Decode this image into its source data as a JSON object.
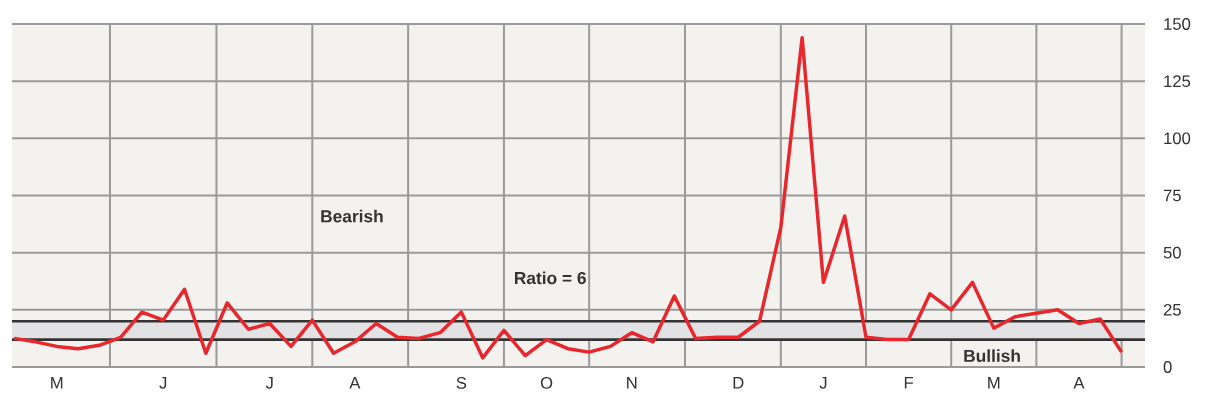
{
  "chart_data": {
    "type": "line",
    "categories": [
      null,
      null,
      "M",
      null,
      null,
      null,
      null,
      "J",
      null,
      null,
      null,
      null,
      "J",
      null,
      null,
      null,
      "A",
      null,
      null,
      null,
      null,
      "S",
      null,
      null,
      null,
      "O",
      null,
      null,
      null,
      "N",
      null,
      null,
      null,
      null,
      "D",
      null,
      null,
      null,
      "J",
      null,
      null,
      null,
      "F",
      null,
      null,
      null,
      "M",
      null,
      null,
      null,
      "A",
      null,
      null
    ],
    "series": [
      {
        "color": "#e8262c",
        "values": [
          12.5,
          11,
          9,
          8,
          9.5,
          13,
          24,
          20.5,
          34,
          6,
          28,
          16.5,
          19,
          9,
          20.5,
          6,
          11,
          19,
          13,
          12.5,
          15,
          24,
          4,
          16,
          5,
          12,
          8,
          6.5,
          9,
          15,
          11,
          31,
          12.5,
          13,
          13,
          20,
          61,
          144,
          37,
          66,
          13,
          12,
          12,
          32,
          25,
          37,
          17,
          22,
          23.5,
          25,
          19,
          21,
          6.5
        ]
      }
    ],
    "ylim": [
      0,
      150
    ],
    "yticks": [
      0,
      25,
      50,
      75,
      100,
      125,
      150
    ],
    "grid": true,
    "bands": [
      {
        "axis": "y",
        "from": 12,
        "to": 20,
        "color": "#e2e2e5"
      }
    ],
    "ref_lines": [
      {
        "axis": "y",
        "value": 12,
        "color": "#333333"
      },
      {
        "axis": "y",
        "value": 20,
        "color": "#333333"
      }
    ],
    "annotations": [
      "Bearish",
      "Ratio = 6",
      "Bullish"
    ]
  }
}
